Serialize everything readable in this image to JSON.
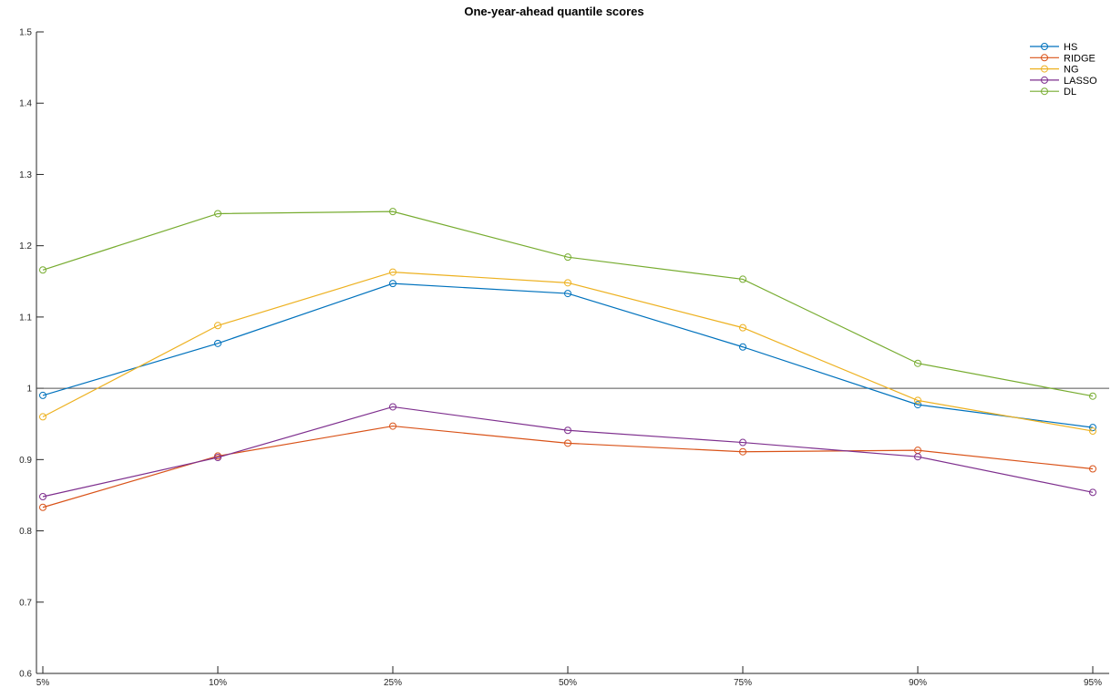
{
  "chart_data": {
    "type": "line",
    "title": "One-year-ahead quantile scores",
    "xlabel": "",
    "ylabel": "",
    "categories": [
      "5%",
      "10%",
      "25%",
      "50%",
      "75%",
      "90%",
      "95%"
    ],
    "ylim": [
      0.6,
      1.5
    ],
    "yticks": [
      0.6,
      0.7,
      0.8,
      0.9,
      1,
      1.1,
      1.2,
      1.3,
      1.4,
      1.5
    ],
    "ytick_labels": [
      "0.6",
      "0.7",
      "0.8",
      "0.9",
      "1",
      "1.1",
      "1.2",
      "1.3",
      "1.4",
      "1.5"
    ],
    "reference_line": 1,
    "grid": false,
    "legend_position": "top-right",
    "series": [
      {
        "name": "HS",
        "color": "#0072BD",
        "values": [
          0.99,
          1.063,
          1.147,
          1.133,
          1.058,
          0.977,
          0.945
        ]
      },
      {
        "name": "RIDGE",
        "color": "#D95319",
        "values": [
          0.833,
          0.905,
          0.947,
          0.923,
          0.911,
          0.913,
          0.887
        ]
      },
      {
        "name": "NG",
        "color": "#EDB120",
        "values": [
          0.96,
          1.088,
          1.163,
          1.148,
          1.085,
          0.983,
          0.94
        ]
      },
      {
        "name": "LASSO",
        "color": "#7E2F8E",
        "values": [
          0.848,
          0.903,
          0.974,
          0.941,
          0.924,
          0.904,
          0.854
        ]
      },
      {
        "name": "DL",
        "color": "#77AC30",
        "values": [
          1.166,
          1.245,
          1.248,
          1.184,
          1.153,
          1.035,
          0.989
        ]
      }
    ]
  }
}
